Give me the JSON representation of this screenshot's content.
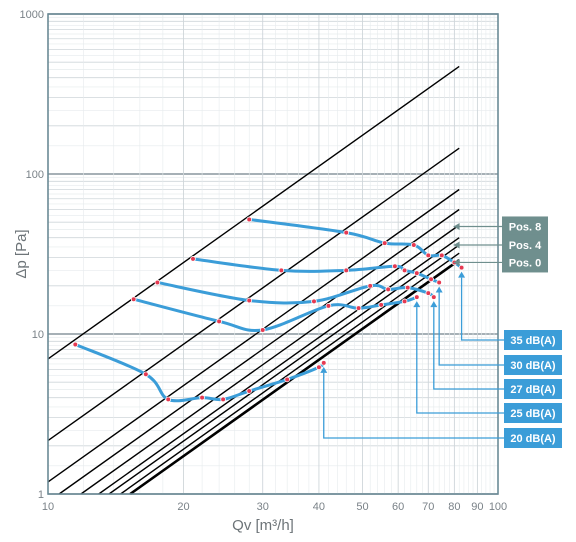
{
  "chart_data": {
    "type": "line",
    "title": "",
    "xlabel": "Qv [m³/h]",
    "ylabel": "Δp [Pa]",
    "x_scale": "log",
    "y_scale": "log",
    "xlim": [
      10,
      100
    ],
    "ylim": [
      1,
      1000
    ],
    "x_ticks": [
      10,
      20,
      30,
      40,
      50,
      60,
      70,
      80,
      90,
      100
    ],
    "y_ticks": [
      1,
      10,
      100,
      1000
    ],
    "grid": true,
    "damper_positions": [
      {
        "x_end": 82,
        "y_end": 470
      },
      {
        "x_end": 82,
        "y_end": 145
      },
      {
        "x_end": 82,
        "y_end": 80
      },
      {
        "x_end": 82,
        "y_end": 60
      },
      {
        "x_end": 82,
        "y_end": 48
      },
      {
        "x_end": 82,
        "y_end": 40
      },
      {
        "x_end": 82,
        "y_end": 36
      },
      {
        "x_end": 82,
        "y_end": 32
      },
      {
        "x_end": 82,
        "y_end": 29
      }
    ],
    "position_tags": [
      {
        "label": "Pos. 8",
        "y": 47
      },
      {
        "label": "Pos. 4",
        "y": 36
      },
      {
        "label": "Pos. 0",
        "y": 28
      }
    ],
    "series": [
      {
        "name": "35 dB(A)",
        "x": [
          28,
          46,
          56,
          65,
          70,
          75,
          80,
          83
        ],
        "y": [
          52,
          43,
          37,
          36,
          31,
          31,
          28,
          26
        ]
      },
      {
        "name": "30 dB(A)",
        "x": [
          21,
          33,
          46,
          59,
          62,
          66,
          71,
          74
        ],
        "y": [
          29.5,
          25,
          25,
          26.5,
          25,
          24,
          22,
          21
        ]
      },
      {
        "name": "27 dB(A)",
        "x": [
          17.5,
          28,
          39,
          52,
          57,
          63,
          70,
          72
        ],
        "y": [
          21,
          16.2,
          16,
          20,
          19,
          19.5,
          18,
          17
        ]
      },
      {
        "name": "25 dB(A)",
        "x": [
          15.5,
          24,
          30,
          42,
          49,
          55,
          62,
          66
        ],
        "y": [
          16.5,
          12,
          10.6,
          15,
          14.5,
          15.2,
          16,
          17
        ]
      },
      {
        "name": "20 dB(A)",
        "x": [
          11.5,
          16.5,
          18.5,
          22,
          24.5,
          28,
          34,
          40,
          41
        ],
        "y": [
          8.6,
          5.6,
          3.9,
          4,
          3.9,
          4.4,
          5.2,
          6.2,
          6.6
        ]
      }
    ],
    "colors": {
      "curve": "#3b9dd8",
      "marker_fill": "#e53a52",
      "marker_stroke": "#ffffff",
      "grid_line": "#cfd6da",
      "grid_line_major": "#9aa5ab",
      "frame": "#6b8a96",
      "diag_line": "#000000",
      "pos_tag": "#6f8f8e",
      "db_tag": "#3b9dd8"
    }
  }
}
